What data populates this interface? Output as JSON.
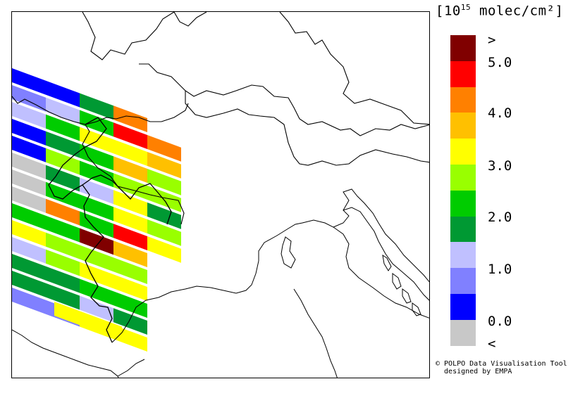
{
  "map": {
    "units_prefix": "[10",
    "units_exp": "15",
    "units_suffix": " molec/cm²]",
    "legend": {
      "colors": [
        "#800000",
        "#ff0000",
        "#ff8000",
        "#ffc000",
        "#ffff00",
        "#99ff00",
        "#00cc00",
        "#009933",
        "#c0c0ff",
        "#8080ff",
        "#0000ff",
        "#c8c8c8"
      ],
      "labels": [
        ">",
        "5.0",
        "4.0",
        "3.0",
        "2.0",
        "1.0",
        "0.0",
        "<"
      ],
      "min_label": "<",
      "max_label": ">"
    },
    "credits_line1": "© POLPO Data Visualisation Tool",
    "credits_line2": "  designed by EMPA"
  }
}
